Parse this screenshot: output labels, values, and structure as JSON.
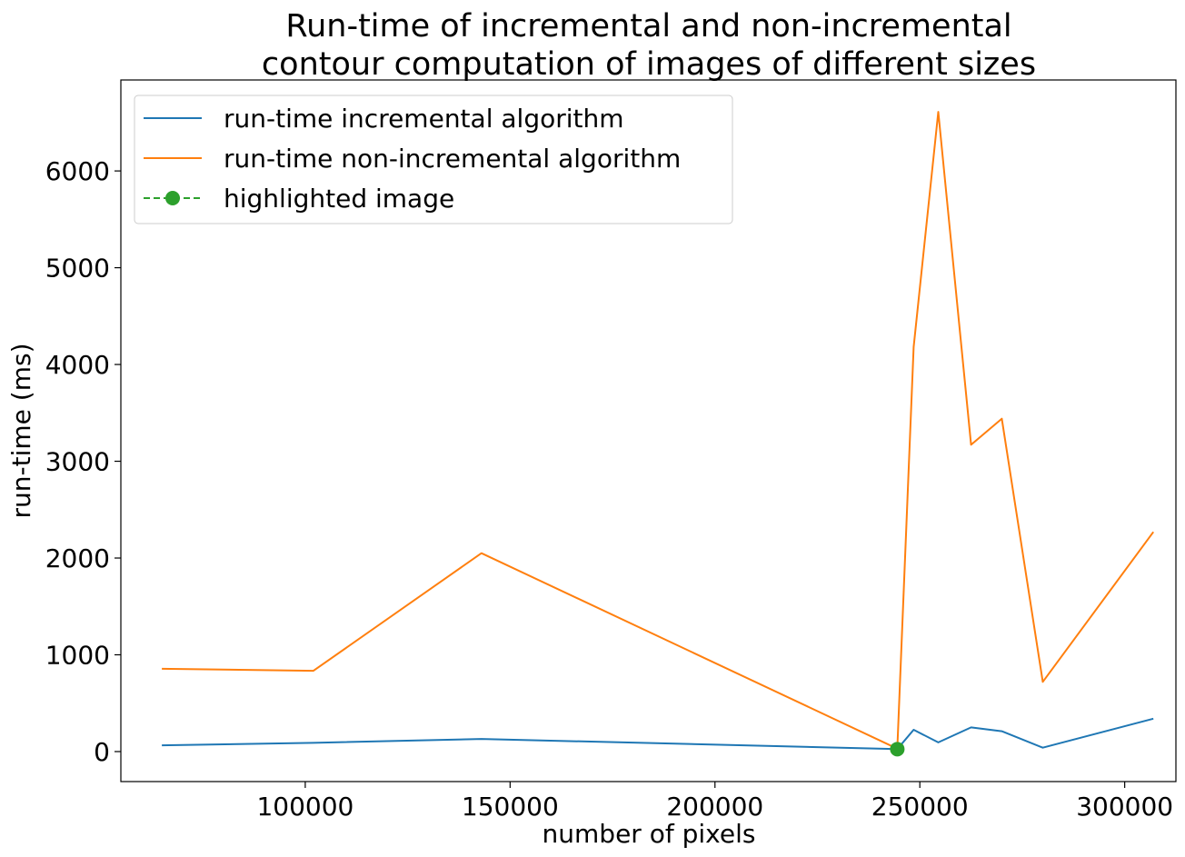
{
  "chart_data": {
    "type": "line",
    "title": "Run-time of incremental and non-incremental\ncontour computation of images of different sizes",
    "title_lines": [
      "Run-time of incremental and non-incremental",
      "contour computation of images of different sizes"
    ],
    "xlabel": "number of pixels",
    "ylabel": "run-time (ms)",
    "xlim": [
      55000,
      312500
    ],
    "ylim": [
      -310,
      6940
    ],
    "xticks": [
      100000,
      150000,
      200000,
      250000,
      300000
    ],
    "xtick_labels": [
      "100000",
      "150000",
      "200000",
      "250000",
      "300000"
    ],
    "yticks": [
      0,
      1000,
      2000,
      3000,
      4000,
      5000,
      6000
    ],
    "ytick_labels": [
      "0",
      "1000",
      "2000",
      "3000",
      "4000",
      "5000",
      "6000"
    ],
    "grid": false,
    "legend_position": "top-left",
    "series": [
      {
        "name": "run-time incremental algorithm",
        "color": "#1f77b4",
        "style": "solid",
        "x": [
          65000,
          102000,
          143000,
          244500,
          248500,
          254500,
          262500,
          270000,
          280000,
          307000
        ],
        "y": [
          65,
          90,
          130,
          25,
          225,
          95,
          250,
          210,
          40,
          340
        ]
      },
      {
        "name": "run-time non-incremental algorithm",
        "color": "#ff7f0e",
        "style": "solid",
        "x": [
          65000,
          102000,
          143000,
          244500,
          248500,
          254500,
          262500,
          270000,
          280000,
          307000
        ],
        "y": [
          855,
          835,
          2050,
          30,
          4180,
          6610,
          3170,
          3440,
          720,
          2270
        ]
      },
      {
        "name": "highlighted image",
        "color": "#2ca02c",
        "style": "dashed-marker",
        "x": [
          244500
        ],
        "y": [
          25
        ]
      }
    ]
  }
}
